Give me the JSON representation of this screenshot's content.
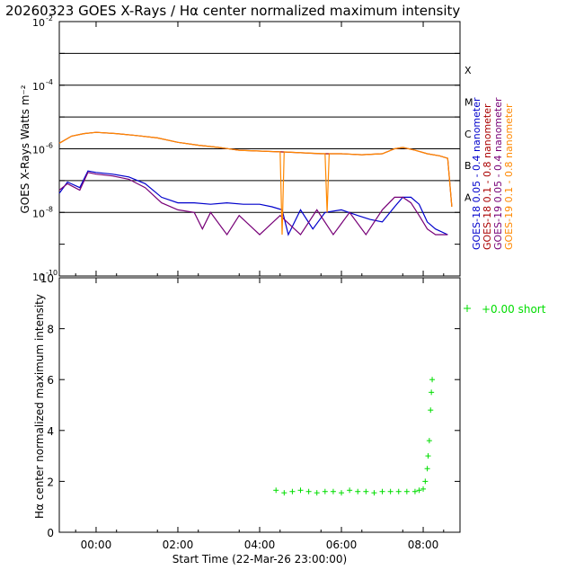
{
  "title": "20260323 GOES X-Rays / Hα center normalized maximum intensity",
  "x_axis": {
    "label": "Start Time (22-Mar-26 23:00:00)",
    "ticks": [
      "00:00",
      "02:00",
      "04:00",
      "06:00",
      "08:00"
    ]
  },
  "colors": {
    "goes18_short": "#0000cc",
    "goes18_long": "#aa0000",
    "goes19_short": "#770077",
    "goes19_long": "#ff8800",
    "halpha": "#00dd00"
  },
  "chart_data": [
    {
      "type": "line",
      "ylabel": "GOES X-Rays Watts m⁻²",
      "y_scale": "log",
      "ylim": [
        1e-10,
        0.01
      ],
      "xlim_hours": [
        -0.9,
        8.9
      ],
      "y_ticks": [
        {
          "label": "10",
          "exp": "-2"
        },
        {
          "label": "10",
          "exp": "-4"
        },
        {
          "label": "10",
          "exp": "-6"
        },
        {
          "label": "10",
          "exp": "-8"
        },
        {
          "label": "10",
          "exp": "-10"
        }
      ],
      "flare_classes": [
        "X",
        "M",
        "C",
        "B",
        "A"
      ],
      "grid": true,
      "series": [
        {
          "name": "GOES-18 0.05 - 0.4 nanometer",
          "color_key": "goes18_short",
          "x": [
            -0.9,
            -0.7,
            -0.4,
            -0.2,
            0.0,
            0.4,
            0.8,
            1.2,
            1.6,
            2.0,
            2.4,
            2.8,
            3.2,
            3.6,
            4.0,
            4.3,
            4.55,
            4.7,
            5.0,
            5.3,
            5.6,
            6.0,
            6.4,
            6.7,
            7.0,
            7.3,
            7.5,
            7.7,
            7.9,
            8.1,
            8.3,
            8.6
          ],
          "y": [
            4e-08,
            9e-08,
            6e-08,
            2e-07,
            1.8e-07,
            1.6e-07,
            1.3e-07,
            8e-08,
            3e-08,
            2e-08,
            2e-08,
            1.8e-08,
            2e-08,
            1.8e-08,
            1.8e-08,
            1.5e-08,
            1.2e-08,
            2e-09,
            1.2e-08,
            3e-09,
            1e-08,
            1.2e-08,
            8e-09,
            6e-09,
            5e-09,
            1.5e-08,
            3e-08,
            3e-08,
            1.8e-08,
            5e-09,
            3e-09,
            2e-09
          ]
        },
        {
          "name": "GOES-18 0.1 - 0.8 nanometer",
          "color_key": "goes18_long",
          "x": [
            -0.9,
            -0.6,
            -0.3,
            0.0,
            0.5,
            1.0,
            1.5,
            2.0,
            2.5,
            3.0,
            3.5,
            4.0,
            4.5,
            5.0,
            5.5,
            6.0,
            6.5,
            7.0,
            7.3,
            7.5,
            7.8,
            8.1,
            8.4,
            8.6,
            8.7
          ],
          "y": [
            1.5e-06,
            2.5e-06,
            3e-06,
            3.3e-06,
            3e-06,
            2.6e-06,
            2.2e-06,
            1.6e-06,
            1.3e-06,
            1.1e-06,
            9e-07,
            8.5e-07,
            8e-07,
            7.5e-07,
            7e-07,
            7e-07,
            6.5e-07,
            7e-07,
            1e-06,
            1.1e-06,
            9e-07,
            7e-07,
            6e-07,
            5e-07,
            1.5e-08
          ]
        },
        {
          "name": "GOES-19 0.05 - 0.4 nanometer",
          "color_key": "goes19_short",
          "x": [
            -0.9,
            -0.7,
            -0.4,
            -0.2,
            0.0,
            0.4,
            0.8,
            1.2,
            1.6,
            2.0,
            2.4,
            2.6,
            2.8,
            3.2,
            3.5,
            4.0,
            4.5,
            5.0,
            5.4,
            5.8,
            6.2,
            6.6,
            7.0,
            7.3,
            7.5,
            7.7,
            7.9,
            8.1,
            8.3,
            8.6
          ],
          "y": [
            5e-08,
            8e-08,
            5e-08,
            1.8e-07,
            1.6e-07,
            1.4e-07,
            1.1e-07,
            6e-08,
            2e-08,
            1.2e-08,
            1e-08,
            3e-09,
            1e-08,
            2e-09,
            8e-09,
            2e-09,
            8e-09,
            2e-09,
            1.2e-08,
            2e-09,
            1e-08,
            2e-09,
            1.2e-08,
            3e-08,
            3e-08,
            2e-08,
            8e-09,
            3e-09,
            2e-09,
            2e-09
          ]
        },
        {
          "name": "GOES-19 0.1 - 0.8 nanometer",
          "color_key": "goes19_long",
          "x": [
            -0.9,
            -0.6,
            -0.3,
            0.0,
            0.5,
            1.0,
            1.5,
            2.0,
            2.5,
            3.0,
            3.5,
            4.0,
            4.5,
            4.55,
            4.6,
            5.0,
            5.6,
            5.65,
            5.7,
            6.0,
            6.5,
            7.0,
            7.3,
            7.5,
            7.8,
            8.1,
            8.4,
            8.6,
            8.7
          ],
          "y": [
            1.5e-06,
            2.5e-06,
            3e-06,
            3.3e-06,
            3e-06,
            2.6e-06,
            2.2e-06,
            1.6e-06,
            1.3e-06,
            1.1e-06,
            9e-07,
            8.5e-07,
            8e-07,
            2e-09,
            8e-07,
            7.5e-07,
            7e-07,
            1e-08,
            7e-07,
            7e-07,
            6.5e-07,
            7e-07,
            1e-06,
            1.1e-06,
            9e-07,
            7e-07,
            6e-07,
            5e-07,
            1.5e-08
          ]
        }
      ],
      "legend_position": "right-vertical"
    },
    {
      "type": "scatter",
      "ylabel": "Hα center normalized maximum intensity",
      "ylim": [
        0,
        10
      ],
      "xlim_hours": [
        -0.9,
        8.9
      ],
      "y_ticks": [
        "0",
        "2",
        "4",
        "6",
        "8",
        "10"
      ],
      "series": [
        {
          "name": "+0.00 short",
          "color_key": "halpha",
          "x": [
            4.4,
            4.6,
            4.8,
            5.0,
            5.2,
            5.4,
            5.6,
            5.8,
            6.0,
            6.2,
            6.4,
            6.6,
            6.8,
            7.0,
            7.2,
            7.4,
            7.6,
            7.8,
            7.9,
            8.0,
            8.05,
            8.1,
            8.12,
            8.15,
            8.18,
            8.2,
            8.22
          ],
          "y": [
            1.65,
            1.55,
            1.6,
            1.65,
            1.6,
            1.55,
            1.6,
            1.6,
            1.55,
            1.65,
            1.6,
            1.6,
            1.55,
            1.6,
            1.6,
            1.6,
            1.6,
            1.6,
            1.65,
            1.7,
            2.0,
            2.5,
            3.0,
            3.6,
            4.8,
            5.5,
            6.0
          ]
        }
      ],
      "legend_position": "top-right-outside"
    }
  ]
}
